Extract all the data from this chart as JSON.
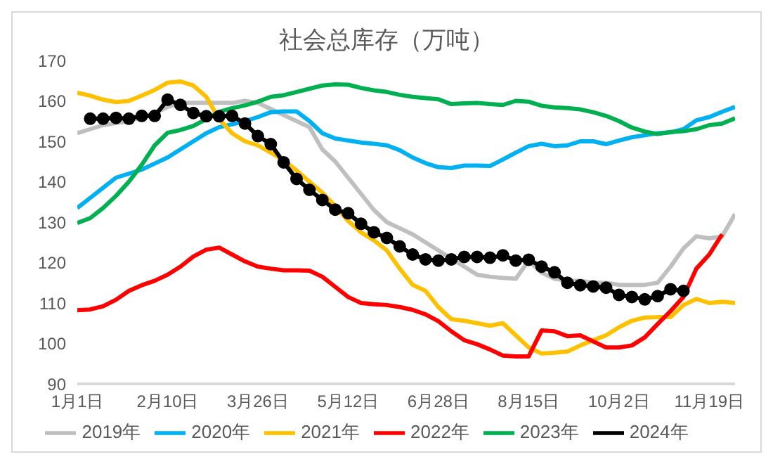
{
  "chart_data": {
    "type": "line",
    "title": "社会总库存（万吨）",
    "categories": [
      "1月1日",
      null,
      null,
      null,
      null,
      null,
      null,
      "2月10日",
      null,
      null,
      null,
      null,
      null,
      null,
      "3月26日",
      null,
      null,
      null,
      null,
      null,
      null,
      "5月12日",
      null,
      null,
      null,
      null,
      null,
      null,
      "6月28日",
      null,
      null,
      null,
      null,
      null,
      null,
      "8月15日",
      null,
      null,
      null,
      null,
      null,
      null,
      "10月2日",
      null,
      null,
      null,
      null,
      null,
      null,
      "11月19日",
      null,
      null
    ],
    "series": [
      {
        "name": "2019年",
        "color": "#bfbfbf",
        "values": [
          152,
          153,
          154,
          154.5,
          155,
          156,
          157,
          158.5,
          159.5,
          159.5,
          159.5,
          159.5,
          159.5,
          160,
          159.5,
          158,
          156.5,
          155,
          153.5,
          148,
          145,
          141,
          137,
          133,
          130,
          128.5,
          127,
          125,
          123,
          121,
          119,
          117,
          116.5,
          116.2,
          116,
          120.5,
          117.5,
          116,
          115.5,
          115.5,
          115,
          115,
          114.5,
          114.5,
          114.5,
          115,
          119,
          123.5,
          126.5,
          126,
          126.5,
          132
        ]
      },
      {
        "name": "2020年",
        "color": "#00b0f0",
        "values": [
          133.5,
          136,
          138.5,
          141,
          142,
          143,
          144.5,
          146,
          148,
          150,
          152,
          153.5,
          154.2,
          155,
          156,
          157.2,
          157.4,
          157.4,
          155,
          152,
          150.7,
          150.2,
          149.7,
          149.4,
          149,
          147.8,
          146,
          144.6,
          143.6,
          143.4,
          144,
          144,
          143.9,
          145.5,
          147.2,
          148.8,
          149.4,
          148.8,
          149,
          150,
          150,
          149.3,
          150.2,
          151,
          151.5,
          152,
          152.2,
          153,
          155.2,
          156,
          157.3,
          158.5
        ]
      },
      {
        "name": "2021年",
        "color": "#ffc000",
        "values": [
          162,
          161.3,
          160.3,
          159.7,
          160,
          161.3,
          162.7,
          164.5,
          164.8,
          163.8,
          161,
          155.5,
          152,
          150,
          149,
          147.2,
          145.3,
          142.8,
          140,
          137.3,
          134,
          130.3,
          127.5,
          125.5,
          123,
          118.5,
          114.5,
          113,
          109,
          106,
          105.6,
          105,
          104.4,
          105,
          102,
          99,
          97.5,
          97.7,
          98,
          99.5,
          100.8,
          102,
          104,
          105.6,
          106.4,
          106.5,
          106.5,
          109.5,
          111,
          110,
          110.3,
          110
        ]
      },
      {
        "name": "2022年",
        "color": "#ff0000",
        "values": [
          108.2,
          108.4,
          109.2,
          110.8,
          113,
          114.4,
          115.5,
          117,
          119,
          121.5,
          123.2,
          123.7,
          122,
          120.3,
          119,
          118.5,
          118.1,
          118.1,
          118,
          116.5,
          114,
          111.5,
          110,
          109.7,
          109.5,
          109,
          108.3,
          107.2,
          105.5,
          103,
          100.8,
          99.8,
          98.5,
          97,
          96.8,
          96.8,
          103.2,
          103,
          101.8,
          102,
          100.5,
          99,
          99,
          99.5,
          101.5,
          104.8,
          108,
          111.5,
          118.5,
          122,
          127,
          null
        ]
      },
      {
        "name": "2023年",
        "color": "#00b050",
        "values": [
          129.8,
          131,
          133.5,
          136.5,
          140,
          144.2,
          149,
          152.1,
          152.8,
          153.8,
          155.5,
          157.3,
          158.2,
          158.9,
          159.8,
          161,
          161.4,
          162.2,
          163,
          163.8,
          164.1,
          164,
          163.2,
          162.6,
          162.2,
          161.5,
          161,
          160.7,
          160.4,
          159.2,
          159.4,
          159.5,
          159.2,
          159,
          160,
          159.8,
          158.8,
          158.4,
          158.2,
          157.9,
          157.2,
          156.3,
          155,
          153.4,
          152.4,
          151.8,
          152.3,
          152.5,
          153,
          154,
          154.4,
          155.7
        ]
      },
      {
        "name": "2024年",
        "color": "#000000",
        "marker": "circle",
        "values": [
          null,
          155.6,
          155.6,
          155.8,
          155.6,
          156.3,
          156.3,
          160.3,
          159,
          157,
          156.2,
          156.2,
          156.3,
          154.4,
          151.3,
          149.3,
          144.8,
          140.7,
          138,
          135.5,
          133.1,
          132.2,
          129.6,
          127.5,
          126.1,
          124,
          122,
          120.8,
          120.5,
          120.8,
          121.4,
          121.4,
          121.2,
          121.8,
          120.5,
          120.7,
          119,
          117.6,
          115,
          114.4,
          114.1,
          113.8,
          112,
          111.5,
          110.9,
          111.7,
          113.4,
          113,
          null,
          null,
          null,
          null
        ]
      }
    ],
    "ylim": [
      90,
      170
    ],
    "yticks": [
      90,
      100,
      110,
      120,
      130,
      140,
      150,
      160,
      170
    ],
    "grid": false,
    "legend": "bottom",
    "marker": "none"
  }
}
